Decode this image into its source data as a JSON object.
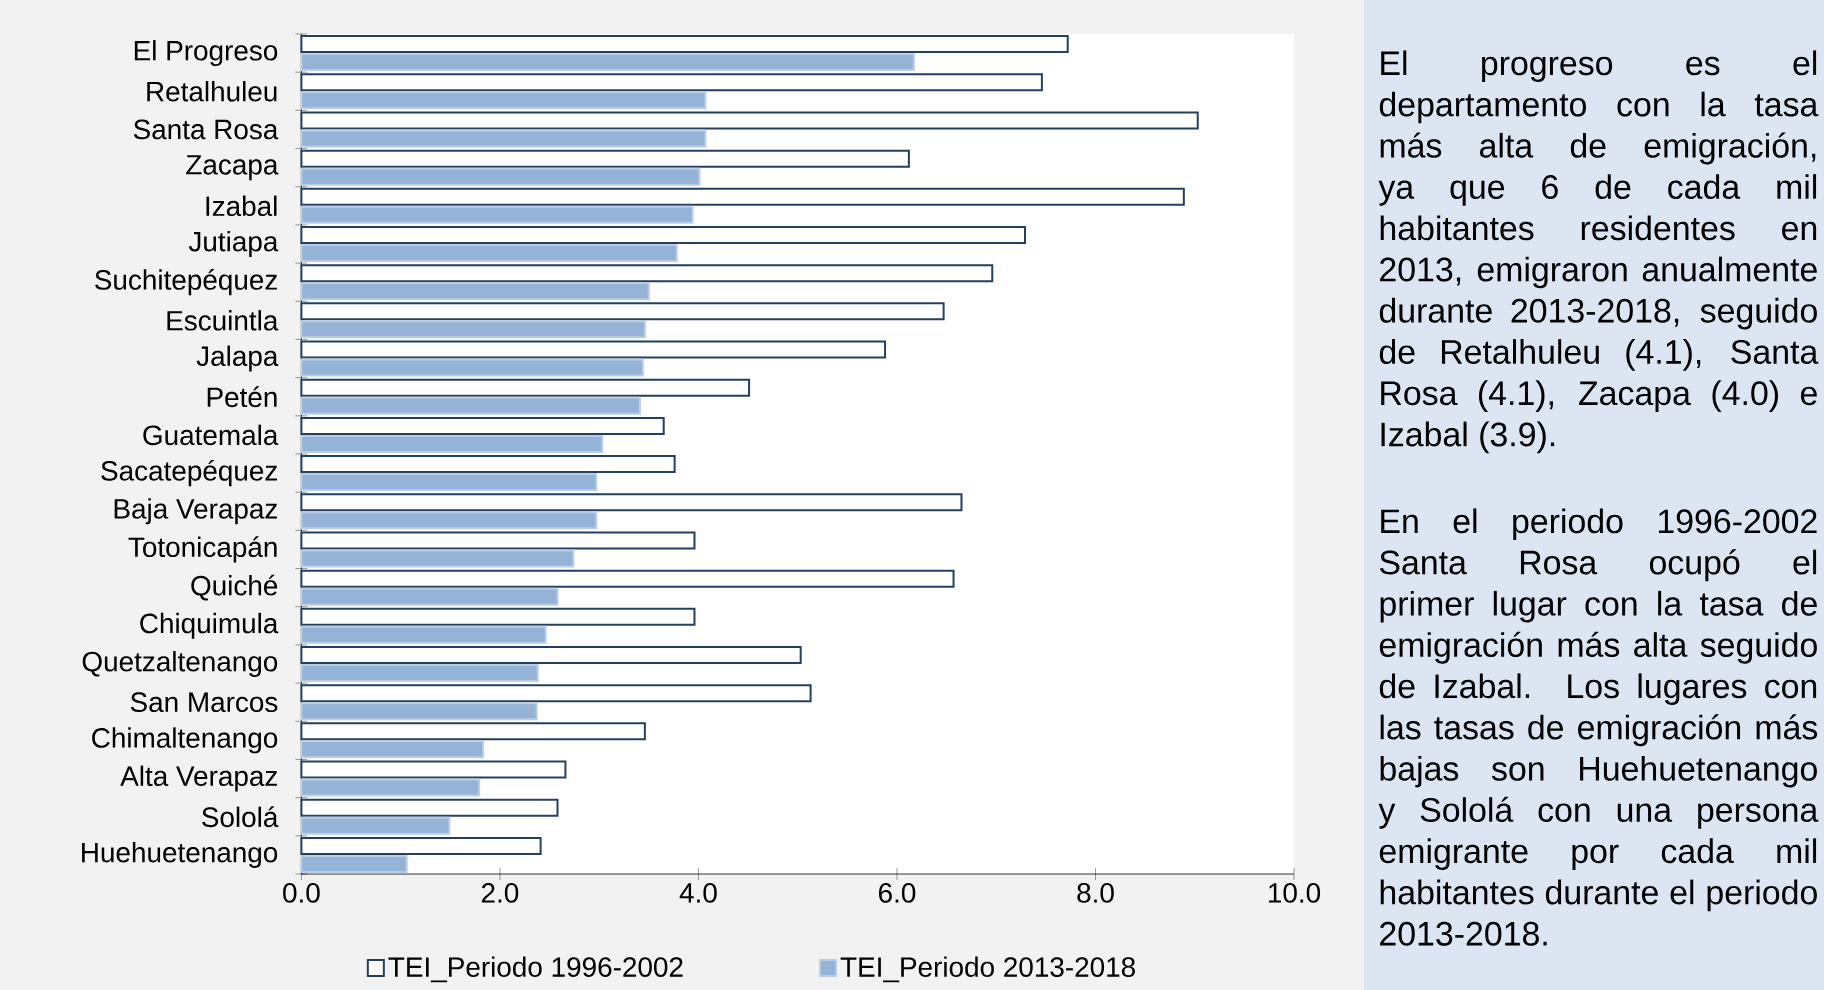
{
  "chart_data": {
    "type": "bar",
    "orientation": "horizontal",
    "categories": [
      "El Progreso",
      "Retalhuleu",
      "Santa Rosa",
      "Zacapa",
      "Izabal",
      "Jutiapa",
      "Suchitepéquez",
      "Escuintla",
      "Jalapa",
      "Petén",
      "Guatemala",
      "Sacatepéquez",
      "Baja Verapaz",
      "Totonicapán",
      "Quiché",
      "Chiquimula",
      "Quetzaltenango",
      "San Marcos",
      "Chimaltenango",
      "Alta Verapaz",
      "Sololá",
      "Huehuetenango"
    ],
    "series": [
      {
        "name": "TEI_Periodo 1996-2002",
        "color": "#ffffff",
        "values": [
          7.72,
          7.46,
          9.03,
          6.12,
          8.89,
          7.29,
          6.96,
          6.47,
          5.88,
          4.51,
          3.65,
          3.76,
          6.65,
          3.96,
          6.57,
          3.96,
          5.03,
          5.13,
          3.46,
          2.66,
          2.58,
          2.41
        ]
      },
      {
        "name": "TEI_Periodo 2013-2018",
        "color": "#95b3d7",
        "values": [
          6.17,
          4.07,
          4.07,
          4.01,
          3.94,
          3.78,
          3.5,
          3.46,
          3.44,
          3.41,
          3.03,
          2.97,
          2.97,
          2.74,
          2.58,
          2.46,
          2.38,
          2.37,
          1.83,
          1.79,
          1.49,
          1.06
        ]
      }
    ],
    "xlim": [
      0,
      10
    ],
    "xticks": [
      {
        "value": 0,
        "label": "0.0"
      },
      {
        "value": 2,
        "label": "2.0"
      },
      {
        "value": 4,
        "label": "4.0"
      },
      {
        "value": 6,
        "label": "6.0"
      },
      {
        "value": 8,
        "label": "8.0"
      },
      {
        "value": 10,
        "label": "10.0"
      }
    ],
    "legend": "bottom",
    "annotations": [
      "El progreso es el departamento con la tasa más alta de emigración, ya que 6 de cada mil habitantes residentes en 2013, emigraron anualmente durante 2013-2018, seguido de Retalhuleu (4.1), Santa Rosa (4.1), Zacapa (4.0) e Izabal (3.9).",
      "En el periodo 1996-2002 Santa Rosa ocupó el primer lugar con la tasa de emigración más alta seguido de Izabal. Los lugares con las tasas de emigración más bajas son Huehuetenango y Sololá con una persona emigrante por cada mil habitantes durante el periodo 2013-2018."
    ]
  }
}
